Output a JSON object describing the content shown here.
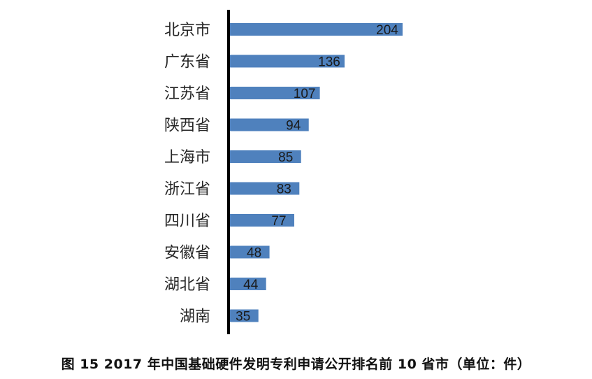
{
  "chart_data": {
    "type": "bar",
    "orientation": "horizontal",
    "categories": [
      "北京市",
      "广东省",
      "江苏省",
      "陕西省",
      "上海市",
      "浙江省",
      "四川省",
      "安徽省",
      "湖北省",
      "湖南"
    ],
    "values": [
      204,
      136,
      107,
      94,
      85,
      83,
      77,
      48,
      44,
      35
    ],
    "title": "图 15   2017 年中国基础硬件发明专利申请公开排名前 10 省市（单位：件）",
    "xlabel": "",
    "ylabel": "",
    "xlim": [
      0,
      204
    ],
    "bar_color": "#4f81bd",
    "axis_color": "#000000",
    "grid": false,
    "legend": "none",
    "data_labels": "inside-end"
  }
}
